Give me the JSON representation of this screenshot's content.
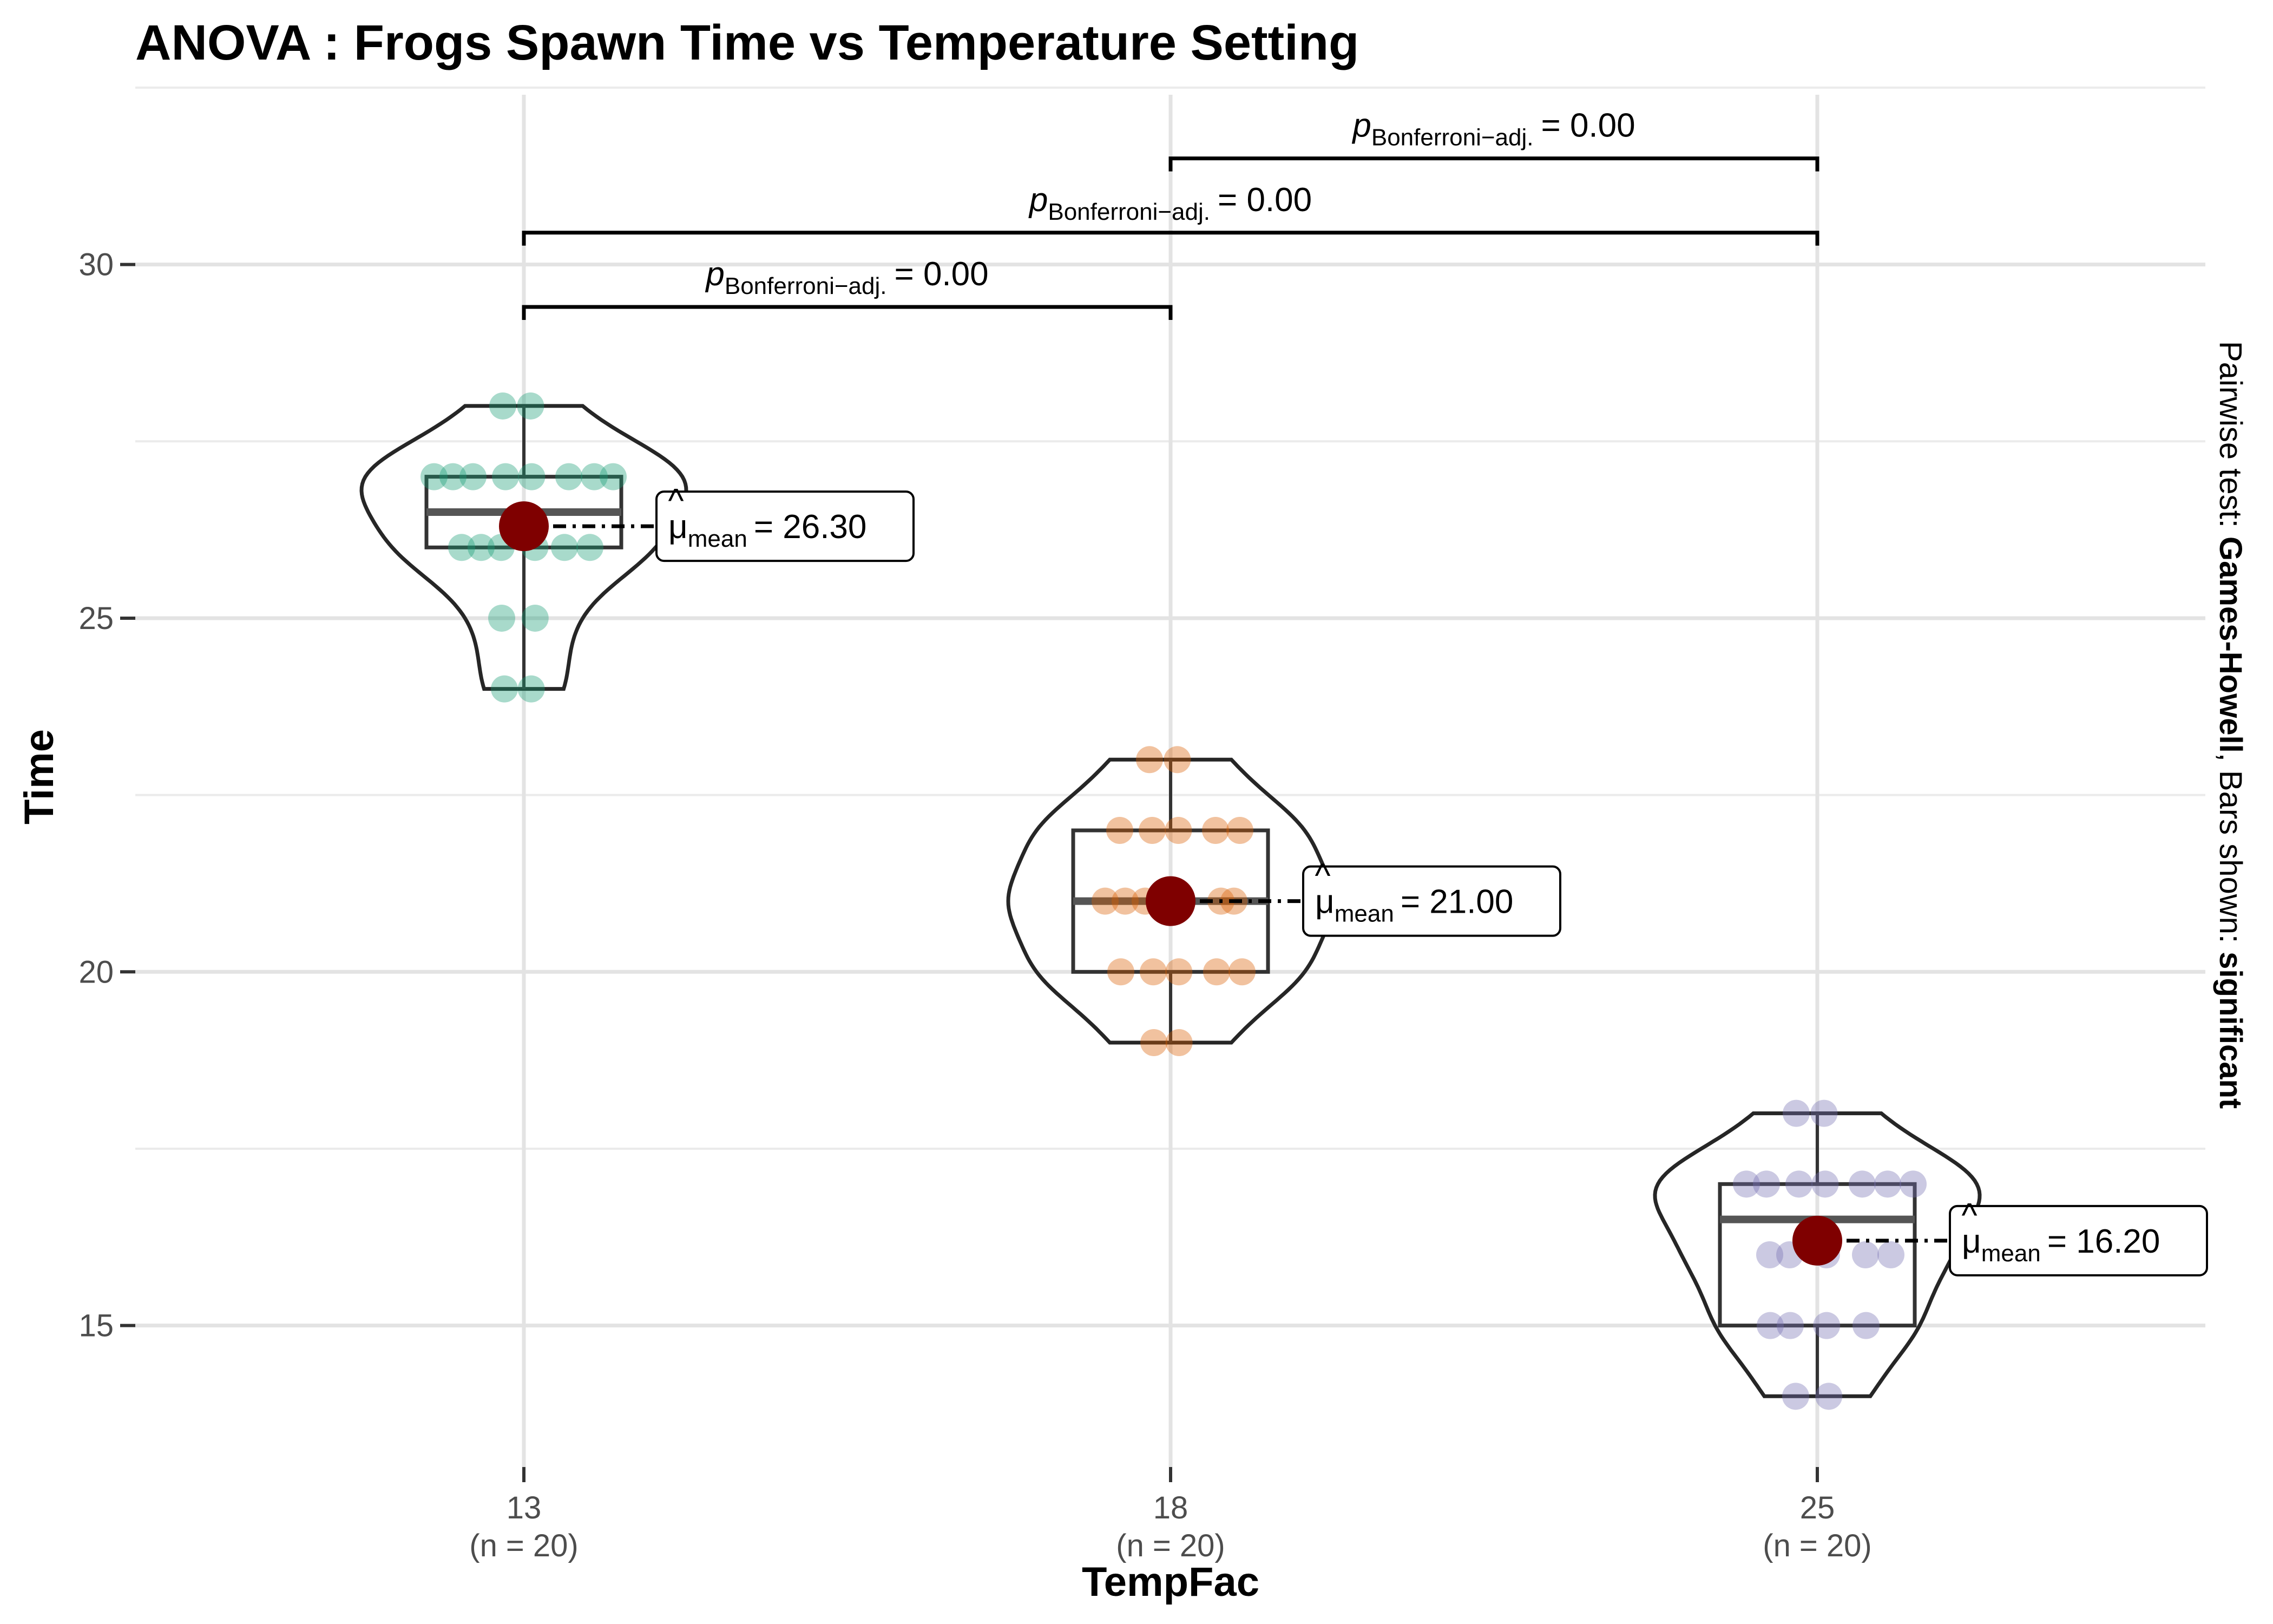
{
  "chart_data": {
    "type": "violin-box",
    "title": "ANOVA : Frogs Spawn Time vs Temperature Setting",
    "xlabel": "TempFac",
    "ylabel": "Time",
    "ylim": [
      13.0,
      32.4
    ],
    "yticks": [
      15,
      20,
      25,
      30
    ],
    "grid": true,
    "caption": {
      "prefix": "Pairwise test: ",
      "test": "Games-Howell",
      "middle": ", Bars shown: ",
      "shown": "significant"
    },
    "point_colors": [
      "#1b9e77",
      "#d95f02",
      "#7570b3"
    ],
    "mean_color": "#7f0000",
    "groups": [
      {
        "category": "13",
        "n_label": "(n = 20)",
        "points": [
          28,
          28,
          27,
          27,
          27,
          27,
          27,
          27,
          26,
          26,
          26,
          26,
          26,
          25,
          25,
          24,
          24,
          27,
          26,
          27
        ],
        "box": {
          "min": 24,
          "q1": 26,
          "median": 26.5,
          "q3": 27,
          "max": 28
        },
        "mean": 26.3,
        "mean_label": {
          "symbol": "μ",
          "subscript": "mean",
          "value": "= 26.30"
        }
      },
      {
        "category": "18",
        "n_label": "(n = 20)",
        "points": [
          23,
          23,
          22,
          22,
          22,
          22,
          21,
          21,
          21,
          21,
          21,
          21,
          20,
          20,
          20,
          20,
          20,
          19,
          19,
          22
        ],
        "box": {
          "min": 19,
          "q1": 20,
          "median": 21,
          "q3": 22,
          "max": 23
        },
        "mean": 21.0,
        "mean_label": {
          "symbol": "μ",
          "subscript": "mean",
          "value": "= 21.00"
        }
      },
      {
        "category": "25",
        "n_label": "(n = 20)",
        "points": [
          18,
          18,
          17,
          17,
          17,
          17,
          17,
          17,
          17,
          16,
          16,
          16,
          16,
          16,
          15,
          15,
          15,
          15,
          14,
          14
        ],
        "box": {
          "min": 14,
          "q1": 15,
          "median": 16.5,
          "q3": 17,
          "max": 18
        },
        "mean": 16.2,
        "mean_label": {
          "symbol": "μ",
          "subscript": "mean",
          "value": "= 16.20"
        }
      }
    ],
    "comparisons": [
      {
        "from": 0,
        "to": 1,
        "y": 29.4,
        "p_symbol": "p",
        "p_subscript": "Bonferroni−adj.",
        "p_value": "= 0.00"
      },
      {
        "from": 0,
        "to": 2,
        "y": 30.45,
        "p_symbol": "p",
        "p_subscript": "Bonferroni−adj.",
        "p_value": "= 0.00"
      },
      {
        "from": 1,
        "to": 2,
        "y": 31.5,
        "p_symbol": "p",
        "p_subscript": "Bonferroni−adj.",
        "p_value": "= 0.00"
      }
    ]
  }
}
